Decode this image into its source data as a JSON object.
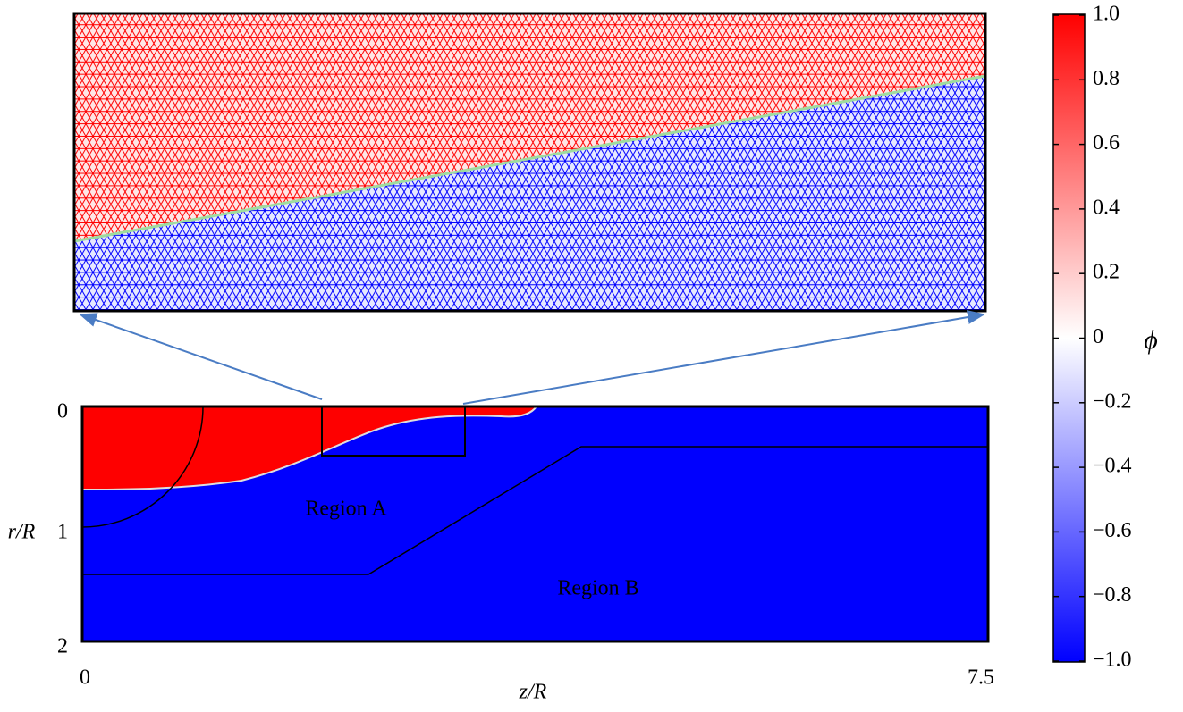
{
  "main_plot": {
    "x_label": "z/R",
    "y_label": "r/R",
    "x_ticks": [
      "0",
      "7.5"
    ],
    "y_ticks": [
      "0",
      "1",
      "2"
    ],
    "regions": [
      "Region A",
      "Region B"
    ]
  },
  "colorbar": {
    "label": "ϕ",
    "ticks": [
      "1.0",
      "0.8",
      "0.6",
      "0.4",
      "0.2",
      "0",
      "−0.2",
      "−0.4",
      "−0.6",
      "−0.8",
      "−1.0"
    ]
  }
}
